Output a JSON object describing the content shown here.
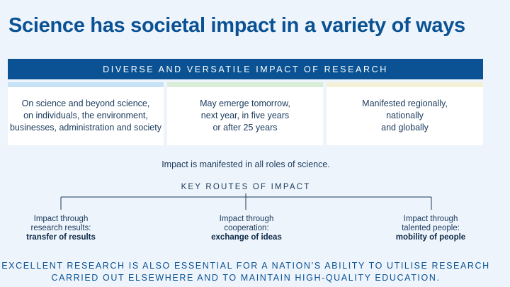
{
  "title": "Science has societal impact in a variety of ways",
  "banner": "DIVERSE AND VERSATILE IMPACT OF RESEARCH",
  "cards": [
    {
      "text": "On science and beyond science,\non individuals, the environment,\nbusinesses, administration and society",
      "accent": "#c6e2f7"
    },
    {
      "text": "May emerge tomorrow,\nnext year,   in five years\nor after 25 years",
      "accent": "#d9ecd6"
    },
    {
      "text": "Manifested regionally,\nnationally\nand globally",
      "accent": "#f2f0d6"
    }
  ],
  "manifest": "Impact is manifested in all roles of science.",
  "routes_heading": "KEY ROUTES OF IMPACT",
  "routes": [
    {
      "line1": "Impact through",
      "line2": "research results:",
      "bold": "transfer of results"
    },
    {
      "line1": "Impact through",
      "line2": "cooperation:",
      "bold": "exchange of ideas"
    },
    {
      "line1": "Impact through",
      "line2": "talented people:",
      "bold": "mobility of people"
    }
  ],
  "footer": {
    "line1": "EXCELLENT RESEARCH IS ALSO ESSENTIAL FOR A NATION’S ABILITY TO UTILISE RESEARCH",
    "line2": "CARRIED OUT ELSEWHERE AND TO MAINTAIN HIGH-QUALITY EDUCATION."
  },
  "colors": {
    "brand": "#0a5294",
    "text": "#1a3a5c",
    "background": "#eef4fb"
  }
}
